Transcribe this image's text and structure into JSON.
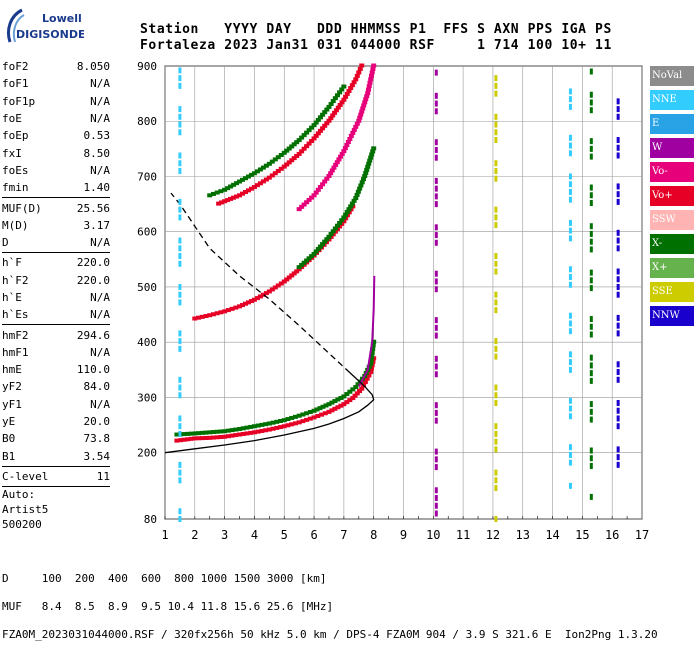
{
  "logo": {
    "line1": "Lowell",
    "line2": "DIGISONDE"
  },
  "header": {
    "line1": "Station   YYYY DAY   DDD HHMMSS P1  FFS S AXN PPS IGA PS",
    "line2": "Fortaleza 2023 Jan31 031 044000 RSF     1 714 100 10+ 11"
  },
  "params": {
    "group1": [
      {
        "label": "foF2",
        "value": "8.050"
      },
      {
        "label": "foF1",
        "value": "N/A"
      },
      {
        "label": "foF1p",
        "value": "N/A"
      },
      {
        "label": "foE",
        "value": "N/A"
      },
      {
        "label": "foEp",
        "value": "0.53"
      },
      {
        "label": "fxI",
        "value": "8.50"
      },
      {
        "label": "foEs",
        "value": "N/A"
      },
      {
        "label": "fmin",
        "value": "1.40"
      }
    ],
    "group2": [
      {
        "label": "MUF(D)",
        "value": "25.56"
      },
      {
        "label": "M(D)",
        "value": "3.17"
      },
      {
        "label": "D",
        "value": "N/A"
      }
    ],
    "group3": [
      {
        "label": "h`F",
        "value": "220.0"
      },
      {
        "label": "h`F2",
        "value": "220.0"
      },
      {
        "label": "h`E",
        "value": "N/A"
      },
      {
        "label": "h`Es",
        "value": "N/A"
      }
    ],
    "group4": [
      {
        "label": "hmF2",
        "value": "294.6"
      },
      {
        "label": "hmF1",
        "value": "N/A"
      },
      {
        "label": "hmE",
        "value": "110.0"
      },
      {
        "label": "yF2",
        "value": "84.0"
      },
      {
        "label": "yF1",
        "value": "N/A"
      },
      {
        "label": "yE",
        "value": "20.0"
      },
      {
        "label": "B0",
        "value": "73.8"
      },
      {
        "label": "B1",
        "value": "3.54"
      }
    ],
    "group5": [
      {
        "label": "C-level",
        "value": "11"
      }
    ],
    "auto": [
      "Auto:",
      "Artist5",
      "500200"
    ]
  },
  "legend": [
    {
      "label": "NoVal",
      "color": "#8c8c8c"
    },
    {
      "label": "NNE",
      "color": "#33ccff"
    },
    {
      "label": "E",
      "color": "#29a3e6"
    },
    {
      "label": "W",
      "color": "#a000a0"
    },
    {
      "label": "Vo-",
      "color": "#e6007a"
    },
    {
      "label": "Vo+",
      "color": "#e60026"
    },
    {
      "label": "SSW",
      "color": "#ffb3b3"
    },
    {
      "label": "X-",
      "color": "#007000"
    },
    {
      "label": "X+",
      "color": "#66b34d"
    },
    {
      "label": "SSE",
      "color": "#cccc00"
    },
    {
      "label": "NNW",
      "color": "#1a00cc"
    }
  ],
  "footer": {
    "line1": "D     100  200  400  600  800 1000 1500 3000 [km]",
    "line2": "MUF   8.4  8.5  8.9  9.5 10.4 11.8 15.6 25.6 [MHz]",
    "line3": "FZA0M_2023031044000.RSF / 320fx256h 50 kHz 5.0 km / DPS-4 FZA0M 904 / 3.9 S 321.6 E  Ion2Png 1.3.20"
  },
  "chart_data": {
    "type": "scatter",
    "title": "",
    "xlabel": "",
    "ylabel": "",
    "x_ticks": [
      "1",
      "2",
      "3",
      "4",
      "5",
      "6",
      "7",
      "8",
      "9",
      "10",
      "11",
      "12",
      "13",
      "14",
      "15",
      "16",
      "17"
    ],
    "y_ticks": [
      "80",
      "200",
      "300",
      "400",
      "500",
      "600",
      "700",
      "800",
      "900"
    ],
    "xlim": [
      1,
      17
    ],
    "ylim": [
      80,
      900
    ],
    "grid": true,
    "series": [
      {
        "name": "Vo+",
        "color": "#e60026",
        "style": "points",
        "points": [
          [
            1.4,
            221
          ],
          [
            2.0,
            225
          ],
          [
            2.5,
            226
          ],
          [
            3.0,
            228
          ],
          [
            3.5,
            232
          ],
          [
            4.0,
            236
          ],
          [
            4.5,
            241
          ],
          [
            5.0,
            247
          ],
          [
            5.5,
            254
          ],
          [
            6.0,
            263
          ],
          [
            6.5,
            273
          ],
          [
            7.0,
            287
          ],
          [
            7.3,
            298
          ],
          [
            7.6,
            315
          ],
          [
            7.9,
            345
          ],
          [
            8.0,
            370
          ]
        ]
      },
      {
        "name": "X-",
        "color": "#007000",
        "style": "points",
        "points": [
          [
            1.4,
            232
          ],
          [
            2.0,
            234
          ],
          [
            2.5,
            236
          ],
          [
            3.0,
            238
          ],
          [
            3.5,
            242
          ],
          [
            4.0,
            247
          ],
          [
            4.5,
            252
          ],
          [
            5.0,
            258
          ],
          [
            5.5,
            266
          ],
          [
            6.0,
            275
          ],
          [
            6.5,
            287
          ],
          [
            7.0,
            301
          ],
          [
            7.4,
            318
          ],
          [
            7.7,
            338
          ],
          [
            7.9,
            360
          ],
          [
            8.0,
            400
          ]
        ]
      },
      {
        "name": "W",
        "color": "#a000a0",
        "style": "line",
        "points": [
          [
            7.5,
            320
          ],
          [
            7.8,
            350
          ],
          [
            7.95,
            400
          ],
          [
            8.0,
            460
          ],
          [
            8.02,
            520
          ]
        ]
      },
      {
        "name": "Vo+",
        "color": "#e60026",
        "style": "points",
        "points": [
          [
            2.0,
            442
          ],
          [
            2.5,
            448
          ],
          [
            3.0,
            455
          ],
          [
            3.5,
            464
          ],
          [
            4.0,
            476
          ],
          [
            4.5,
            491
          ],
          [
            5.0,
            509
          ],
          [
            5.5,
            531
          ],
          [
            6.0,
            556
          ],
          [
            6.5,
            585
          ],
          [
            7.0,
            618
          ],
          [
            7.3,
            645
          ]
        ]
      },
      {
        "name": "X-",
        "color": "#007000",
        "style": "points",
        "points": [
          [
            5.5,
            535
          ],
          [
            6.0,
            559
          ],
          [
            6.5,
            590
          ],
          [
            7.0,
            625
          ],
          [
            7.4,
            660
          ],
          [
            7.7,
            700
          ],
          [
            8.0,
            750
          ]
        ]
      },
      {
        "name": "Vo+",
        "color": "#e60026",
        "style": "points",
        "points": [
          [
            2.8,
            650
          ],
          [
            3.5,
            665
          ],
          [
            4.0,
            680
          ],
          [
            4.5,
            697
          ],
          [
            5.0,
            717
          ],
          [
            5.5,
            740
          ],
          [
            6.0,
            768
          ],
          [
            6.5,
            800
          ],
          [
            7.0,
            838
          ],
          [
            7.4,
            875
          ],
          [
            7.6,
            900
          ]
        ]
      },
      {
        "name": "X-",
        "color": "#007000",
        "style": "points",
        "points": [
          [
            2.5,
            665
          ],
          [
            3.0,
            675
          ],
          [
            3.5,
            690
          ],
          [
            4.0,
            705
          ],
          [
            4.5,
            722
          ],
          [
            5.0,
            742
          ],
          [
            5.5,
            765
          ],
          [
            6.0,
            792
          ],
          [
            6.5,
            825
          ],
          [
            7.0,
            862
          ]
        ]
      },
      {
        "name": "Vo-",
        "color": "#e6007a",
        "style": "points",
        "points": [
          [
            5.5,
            640
          ],
          [
            6.0,
            665
          ],
          [
            6.5,
            700
          ],
          [
            7.0,
            745
          ],
          [
            7.5,
            800
          ],
          [
            7.8,
            850
          ],
          [
            8.0,
            900
          ]
        ]
      },
      {
        "name": "profile",
        "color": "#000000",
        "style": "line",
        "points": [
          [
            1.0,
            200
          ],
          [
            2.0,
            207
          ],
          [
            3.0,
            214
          ],
          [
            4.0,
            222
          ],
          [
            5.0,
            232
          ],
          [
            6.0,
            244
          ],
          [
            6.5,
            252
          ],
          [
            7.0,
            262
          ],
          [
            7.5,
            274
          ],
          [
            7.8,
            286
          ],
          [
            8.0,
            296
          ],
          [
            7.95,
            305
          ],
          [
            7.7,
            320
          ],
          [
            7.2,
            345
          ]
        ]
      },
      {
        "name": "profile-extrapolated",
        "color": "#000000",
        "style": "dashed",
        "points": [
          [
            7.2,
            345
          ],
          [
            6.5,
            380
          ],
          [
            5.5,
            430
          ],
          [
            4.5,
            478
          ],
          [
            3.5,
            520
          ],
          [
            2.5,
            570
          ],
          [
            2.0,
            610
          ],
          [
            1.5,
            650
          ],
          [
            1.2,
            670
          ]
        ]
      },
      {
        "name": "NNE",
        "color": "#33ccff",
        "style": "column",
        "x": 1.5,
        "range": [
          80,
          900
        ]
      },
      {
        "name": "NNE",
        "color": "#33ccff",
        "style": "column",
        "x": 14.6,
        "range": [
          140,
          880
        ]
      },
      {
        "name": "NNW",
        "color": "#1a00cc",
        "style": "column",
        "x": 16.2,
        "range": [
          150,
          890
        ]
      },
      {
        "name": "X-",
        "color": "#007000",
        "style": "column",
        "x": 15.3,
        "range": [
          120,
          900
        ]
      },
      {
        "name": "W",
        "color": "#a000a0",
        "style": "column",
        "x": 10.1,
        "range": [
          90,
          900
        ]
      },
      {
        "name": "SSE",
        "color": "#cccc00",
        "style": "column",
        "x": 12.1,
        "range": [
          80,
          880
        ]
      }
    ]
  }
}
